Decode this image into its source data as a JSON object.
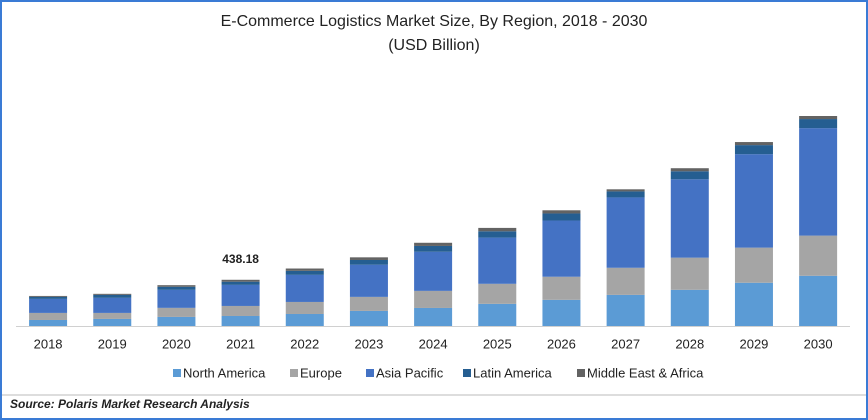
{
  "chart_data": {
    "type": "stacked-bar",
    "title": "E-Commerce Logistics Market Size, By Region, 2018 - 2030",
    "subtitle": "(USD Billion)",
    "categories": [
      "2018",
      "2019",
      "2020",
      "2021",
      "2022",
      "2023",
      "2024",
      "2025",
      "2026",
      "2027",
      "2028",
      "2029",
      "2030"
    ],
    "series": [
      {
        "name": "North America",
        "color": "#5b9bd5",
        "values": [
          57,
          67,
          86,
          95,
          114,
          143,
          171,
          210,
          248,
          295,
          343,
          410,
          476
        ]
      },
      {
        "name": "Europe",
        "color": "#a5a5a5",
        "values": [
          67,
          57,
          86,
          95,
          114,
          133,
          162,
          190,
          219,
          257,
          305,
          333,
          381
        ]
      },
      {
        "name": "Asia Pacific",
        "color": "#4472c4",
        "values": [
          133,
          143,
          171,
          200,
          257,
          305,
          371,
          438,
          533,
          667,
          743,
          886,
          1019
        ]
      },
      {
        "name": "Latin America",
        "color": "#255e91",
        "values": [
          19,
          28,
          29,
          30,
          38,
          45,
          55,
          60,
          67,
          57,
          76,
          86,
          86
        ]
      },
      {
        "name": "Middle East & Africa",
        "color": "#636363",
        "values": [
          9,
          10,
          15,
          18.18,
          22,
          25,
          30,
          32,
          30,
          20,
          29,
          29,
          29
        ]
      }
    ],
    "annotations": [
      {
        "category": "2021",
        "text": "438.18"
      }
    ],
    "legend": "bottom",
    "source": "Source: Polaris  Market Research Analysis"
  }
}
